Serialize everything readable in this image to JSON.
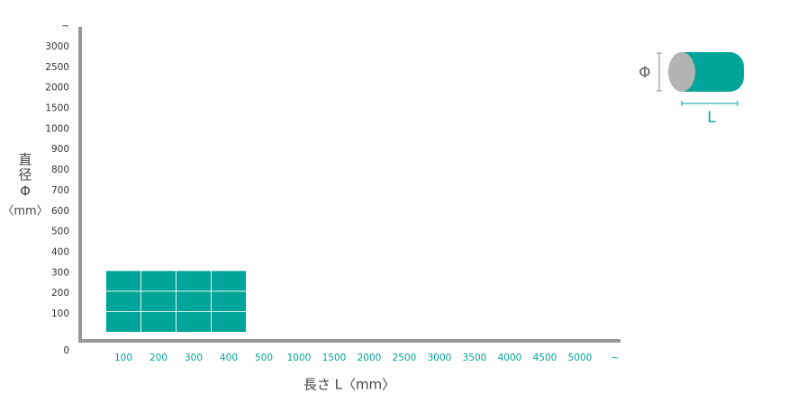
{
  "chart_data": {
    "type": "coverage",
    "x_label": "長さ L〈mm〉",
    "y_label": [
      "直",
      "径",
      "Φ",
      "〈mm〉"
    ],
    "xticks": [
      100,
      200,
      300,
      400,
      500,
      1000,
      1500,
      2000,
      2500,
      3000,
      3500,
      4000,
      4500,
      5000,
      "~"
    ],
    "yticks": [
      0,
      100,
      200,
      300,
      400,
      500,
      600,
      700,
      800,
      900,
      1000,
      1500,
      2000,
      2500,
      3000,
      "~"
    ],
    "coverage": {
      "x": [
        100,
        400
      ],
      "y": [
        100,
        300
      ]
    },
    "color": "#00a499",
    "icon": {
      "diameter": "Φ",
      "length": "L"
    }
  }
}
